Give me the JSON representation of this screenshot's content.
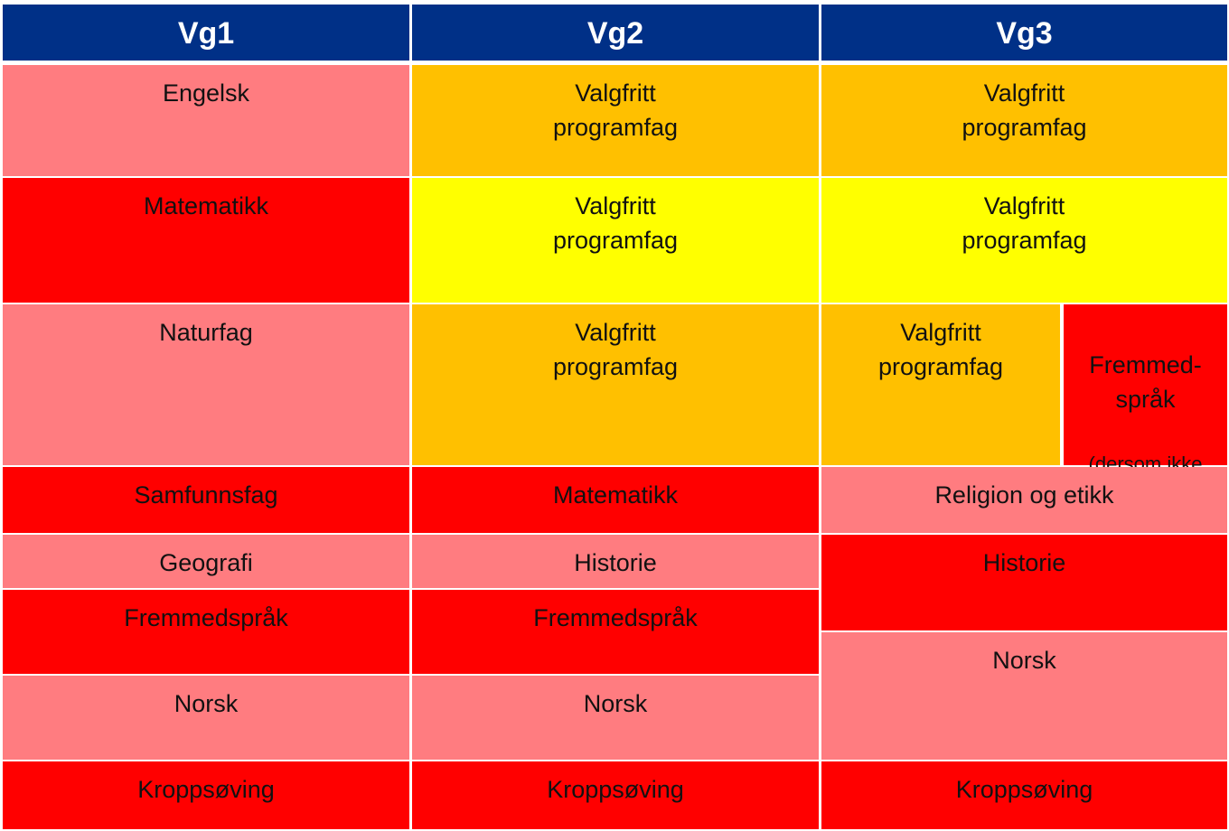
{
  "colors": {
    "header": "#003087",
    "pink": "#FF7C80",
    "red": "#FF0000",
    "orange": "#FFC000",
    "yellow": "#FFFF00"
  },
  "headers": [
    "Vg1",
    "Vg2",
    "Vg3"
  ],
  "vg1": [
    "Engelsk",
    "Matematikk",
    "Naturfag",
    "Samfunnsfag",
    "Geografi",
    "Fremmedspråk",
    "Norsk",
    "Kroppsøving"
  ],
  "vg2": [
    "Valgfritt\nprogramfag",
    "Valgfritt\nprogramfag",
    "Valgfritt\nprogramfag",
    "Matematikk",
    "Historie",
    "Fremmedspråk",
    "Norsk",
    "Kroppsøving"
  ],
  "vg3": [
    "Valgfritt\nprogramfag",
    "Valgfritt\nprogramfag",
    "Valgfritt\nprogramfag",
    "Fremmed-\nspråk",
    "(dersom ikke\nf.språk u-\nskole)",
    "Religion og etikk",
    "Historie",
    "Norsk",
    "Kroppsøving"
  ]
}
